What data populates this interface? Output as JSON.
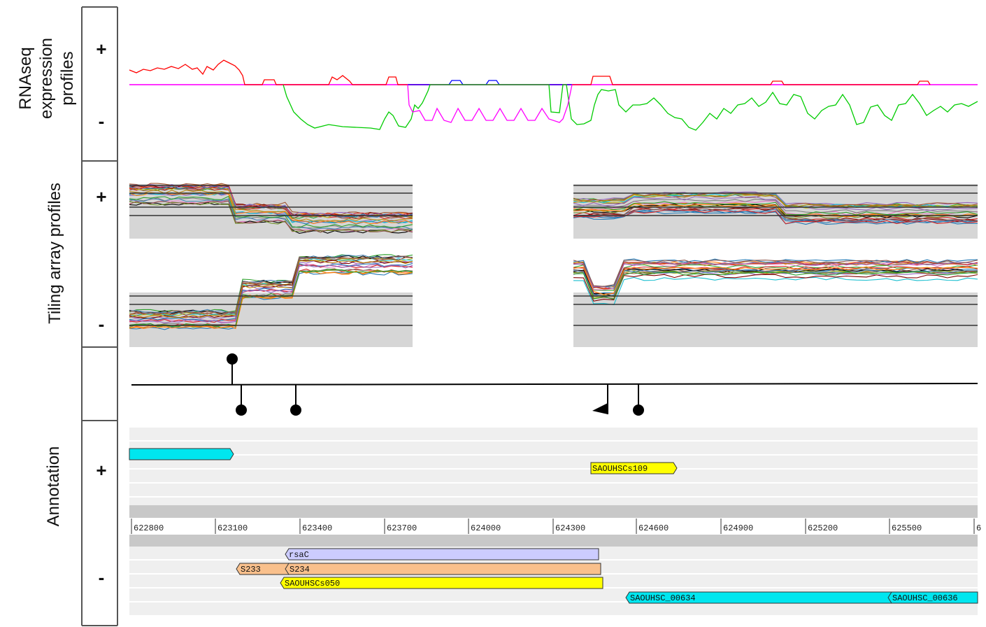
{
  "panels": {
    "rnaseq": {
      "label_line1": "RNAseq",
      "label_line2": "expression",
      "label_line3": "profiles",
      "plus": "+",
      "minus": "-"
    },
    "tiling": {
      "label": "Tiling array profiles",
      "plus": "+",
      "minus": "-"
    },
    "annotation": {
      "label": "Annotation",
      "plus": "+",
      "minus": "-"
    }
  },
  "axis": {
    "ticks": [
      "622800",
      "623100",
      "623400",
      "623700",
      "624000",
      "624300",
      "624600",
      "624900",
      "625200",
      "625500",
      "6"
    ]
  },
  "genes": {
    "plus": [
      {
        "label": "",
        "color": "#00e6ef"
      },
      {
        "label": "SAOUHSCs109",
        "color": "#ffff00"
      }
    ],
    "minus": [
      {
        "label": "rsaC",
        "color": "#ccccff"
      },
      {
        "label": "S233",
        "color": "#f9c08c"
      },
      {
        "label": "S234",
        "color": "#f9c08c"
      },
      {
        "label": "SAOUHSCs050",
        "color": "#ffff00"
      },
      {
        "label": "SAOUHSC_00634",
        "color": "#00e6ef"
      },
      {
        "label": "SAOUHSC_00636",
        "color": "#00e6ef"
      }
    ]
  },
  "colors": {
    "rnaseq_plus_forward": "#ff0000",
    "rnaseq_plus_reverse": "#0000ff",
    "rnaseq_minus_forward": "#00cc00",
    "rnaseq_minus_reverse": "#ff00ff",
    "tiling_bg": "#d6d6d6",
    "annotation_bg": "#efefef"
  }
}
